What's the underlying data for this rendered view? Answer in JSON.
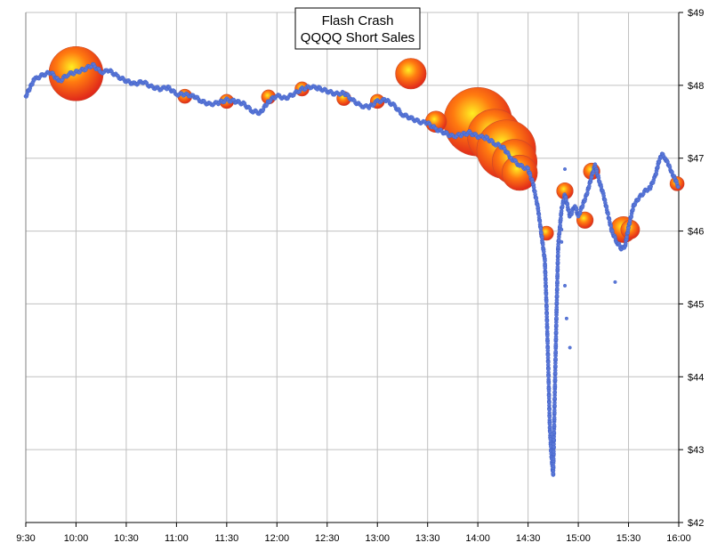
{
  "chart_data": {
    "type": "scatter",
    "title": "Flash Crash",
    "subtitle": "QQQQ Short Sales",
    "xlabel": "",
    "ylabel": "",
    "x_unit": "time of day",
    "x_ticks": [
      "9:30",
      "10:00",
      "10:30",
      "11:00",
      "11:30",
      "12:00",
      "12:30",
      "13:00",
      "13:30",
      "14:00",
      "14:30",
      "15:00",
      "15:30",
      "16:00"
    ],
    "y_ticks": [
      "$42",
      "$43",
      "$44",
      "$45",
      "$46",
      "$47",
      "$48",
      "$49"
    ],
    "xlim": [
      "9:30",
      "16:00"
    ],
    "ylim": [
      42,
      49
    ],
    "y_axis_side": "right",
    "grid": true,
    "legend": "none",
    "colors": {
      "trade_dot": "#5a78d8",
      "bubble_core": "#ffee22",
      "bubble_mid": "#ff7a10",
      "bubble_edge": "#e0281a",
      "grid": "#c0c0c0"
    },
    "series": [
      {
        "values": [
          [
            "9:30",
            47.85
          ],
          [
            "9:35",
            48.08
          ],
          [
            "9:40",
            48.14
          ],
          [
            "9:45",
            48.18
          ],
          [
            "9:50",
            48.05
          ],
          [
            "9:55",
            48.15
          ],
          [
            "10:00",
            48.18
          ],
          [
            "10:05",
            48.22
          ],
          [
            "10:10",
            48.28
          ],
          [
            "10:15",
            48.18
          ],
          [
            "10:20",
            48.2
          ],
          [
            "10:25",
            48.12
          ],
          [
            "10:30",
            48.06
          ],
          [
            "10:35",
            48.02
          ],
          [
            "10:40",
            48.05
          ],
          [
            "10:45",
            47.98
          ],
          [
            "10:50",
            47.95
          ],
          [
            "10:55",
            47.97
          ],
          [
            "11:00",
            47.88
          ],
          [
            "11:05",
            47.87
          ],
          [
            "11:10",
            47.86
          ],
          [
            "11:15",
            47.78
          ],
          [
            "11:20",
            47.74
          ],
          [
            "11:25",
            47.76
          ],
          [
            "11:30",
            47.8
          ],
          [
            "11:35",
            47.78
          ],
          [
            "11:40",
            47.75
          ],
          [
            "11:45",
            47.65
          ],
          [
            "11:50",
            47.62
          ],
          [
            "11:55",
            47.78
          ],
          [
            "12:00",
            47.86
          ],
          [
            "12:05",
            47.82
          ],
          [
            "12:10",
            47.88
          ],
          [
            "12:15",
            47.95
          ],
          [
            "12:20",
            47.98
          ],
          [
            "12:25",
            47.96
          ],
          [
            "12:30",
            47.92
          ],
          [
            "12:35",
            47.88
          ],
          [
            "12:40",
            47.9
          ],
          [
            "12:45",
            47.8
          ],
          [
            "12:50",
            47.72
          ],
          [
            "12:55",
            47.7
          ],
          [
            "13:00",
            47.78
          ],
          [
            "13:05",
            47.8
          ],
          [
            "13:10",
            47.72
          ],
          [
            "13:15",
            47.6
          ],
          [
            "13:20",
            47.55
          ],
          [
            "13:25",
            47.5
          ],
          [
            "13:30",
            47.48
          ],
          [
            "13:35",
            47.4
          ],
          [
            "13:40",
            47.35
          ],
          [
            "13:45",
            47.3
          ],
          [
            "13:50",
            47.32
          ],
          [
            "13:55",
            47.35
          ],
          [
            "14:00",
            47.3
          ],
          [
            "14:05",
            47.28
          ],
          [
            "14:10",
            47.2
          ],
          [
            "14:15",
            47.15
          ],
          [
            "14:20",
            47.0
          ],
          [
            "14:25",
            46.9
          ],
          [
            "14:30",
            46.85
          ],
          [
            "14:33",
            46.65
          ],
          [
            "14:36",
            46.3
          ],
          [
            "14:38",
            45.95
          ],
          [
            "14:40",
            45.6
          ],
          [
            "14:41",
            45.0
          ],
          [
            "14:42",
            44.2
          ],
          [
            "14:43",
            43.3
          ],
          [
            "14:44",
            42.9
          ],
          [
            "14:45",
            42.65
          ],
          [
            "14:46",
            43.8
          ],
          [
            "14:47",
            44.9
          ],
          [
            "14:48",
            45.8
          ],
          [
            "14:50",
            46.3
          ],
          [
            "14:52",
            46.5
          ],
          [
            "14:55",
            46.2
          ],
          [
            "14:58",
            46.35
          ],
          [
            "15:00",
            46.2
          ],
          [
            "15:05",
            46.5
          ],
          [
            "15:08",
            46.75
          ],
          [
            "15:10",
            46.9
          ],
          [
            "15:13",
            46.65
          ],
          [
            "15:15",
            46.5
          ],
          [
            "15:18",
            46.2
          ],
          [
            "15:20",
            46.0
          ],
          [
            "15:23",
            45.85
          ],
          [
            "15:26",
            45.75
          ],
          [
            "15:28",
            45.8
          ],
          [
            "15:30",
            46.05
          ],
          [
            "15:33",
            46.35
          ],
          [
            "15:36",
            46.45
          ],
          [
            "15:40",
            46.55
          ],
          [
            "15:43",
            46.6
          ],
          [
            "15:46",
            46.75
          ],
          [
            "15:48",
            46.95
          ],
          [
            "15:50",
            47.05
          ],
          [
            "15:52",
            47.0
          ],
          [
            "15:54",
            46.9
          ],
          [
            "15:56",
            46.8
          ],
          [
            "15:58",
            46.7
          ],
          [
            "16:00",
            46.6
          ]
        ]
      }
    ],
    "bubbles": [
      {
        "t": "10:00",
        "price": 48.16,
        "size": 10
      },
      {
        "t": "13:20",
        "price": 48.16,
        "size": 5
      },
      {
        "t": "14:00",
        "price": 47.5,
        "size": 13
      },
      {
        "t": "14:10",
        "price": 47.3,
        "size": 10
      },
      {
        "t": "14:17",
        "price": 47.12,
        "size": 11
      },
      {
        "t": "14:22",
        "price": 46.95,
        "size": 8
      },
      {
        "t": "14:25",
        "price": 46.8,
        "size": 6
      },
      {
        "t": "13:35",
        "price": 47.5,
        "size": 3
      },
      {
        "t": "15:27",
        "price": 46.02,
        "size": 4
      },
      {
        "t": "15:04",
        "price": 46.15,
        "size": 2
      },
      {
        "t": "15:08",
        "price": 46.82,
        "size": 2
      },
      {
        "t": "14:52",
        "price": 46.55,
        "size": 2
      },
      {
        "t": "14:41",
        "price": 45.97,
        "size": 1.5
      },
      {
        "t": "11:05",
        "price": 47.85,
        "size": 1.5
      },
      {
        "t": "11:30",
        "price": 47.78,
        "size": 1.5
      },
      {
        "t": "11:55",
        "price": 47.84,
        "size": 1.5
      },
      {
        "t": "12:15",
        "price": 47.95,
        "size": 1.5
      },
      {
        "t": "12:40",
        "price": 47.82,
        "size": 1.5
      },
      {
        "t": "13:00",
        "price": 47.78,
        "size": 1.5
      },
      {
        "t": "15:31",
        "price": 46.02,
        "size": 2.5
      },
      {
        "t": "15:59",
        "price": 46.65,
        "size": 1.5
      }
    ],
    "outliers": [
      [
        "14:52",
        45.25
      ],
      [
        "14:55",
        44.4
      ],
      [
        "14:52",
        46.85
      ],
      [
        "14:50",
        45.85
      ],
      [
        "14:50",
        46.02
      ],
      [
        "15:22",
        45.3
      ],
      [
        "14:53",
        44.8
      ]
    ]
  }
}
